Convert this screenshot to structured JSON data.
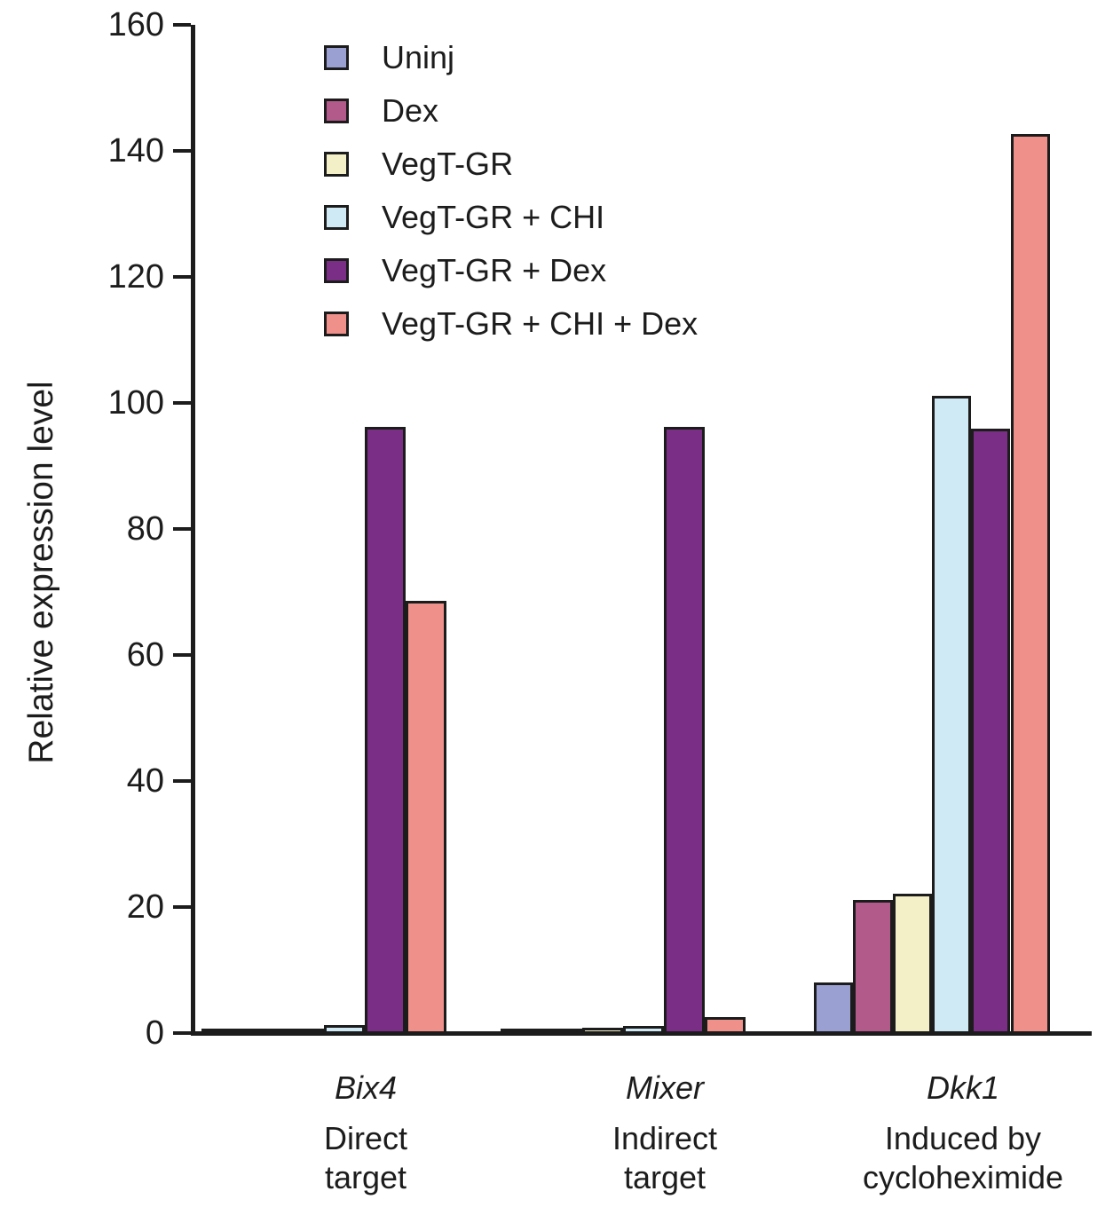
{
  "colors": {
    "ink": "#1c1c1c",
    "background": "#ffffff"
  },
  "chart_data": {
    "type": "bar",
    "title": "",
    "xlabel": "",
    "ylabel": "Relative expression level",
    "ylim": [
      0,
      160
    ],
    "yticks": [
      0,
      20,
      40,
      60,
      80,
      100,
      120,
      140,
      160
    ],
    "grid": false,
    "legend_position": "top-left-inside",
    "categories": [
      "Bix4",
      "Mixer",
      "Dkk1"
    ],
    "groups": [
      {
        "gene": "Bix4",
        "desc_line1": "Direct",
        "desc_line2": "target"
      },
      {
        "gene": "Mixer",
        "desc_line1": "Indirect",
        "desc_line2": "target"
      },
      {
        "gene": "Dkk1",
        "desc_line1": "Induced by",
        "desc_line2": "cycloheximide"
      }
    ],
    "series": [
      {
        "name": "Uninj",
        "color": "#9aa0d2",
        "values": [
          0.1,
          0.4,
          7.8
        ]
      },
      {
        "name": "Dex",
        "color": "#b25a89",
        "values": [
          0.1,
          0.4,
          20.9
        ]
      },
      {
        "name": "VegT-GR",
        "color": "#f3efc6",
        "values": [
          0.4,
          0.5,
          21.8
        ]
      },
      {
        "name": "VegT-GR + CHI",
        "color": "#cfe9f5",
        "values": [
          1.0,
          0.8,
          100.9
        ]
      },
      {
        "name": "VegT-GR + Dex",
        "color": "#7b2e85",
        "values": [
          95.9,
          95.9,
          95.7
        ]
      },
      {
        "name": "VegT-GR + CHI + Dex",
        "color": "#f0908b",
        "values": [
          68.4,
          2.2,
          142.4
        ]
      }
    ]
  }
}
